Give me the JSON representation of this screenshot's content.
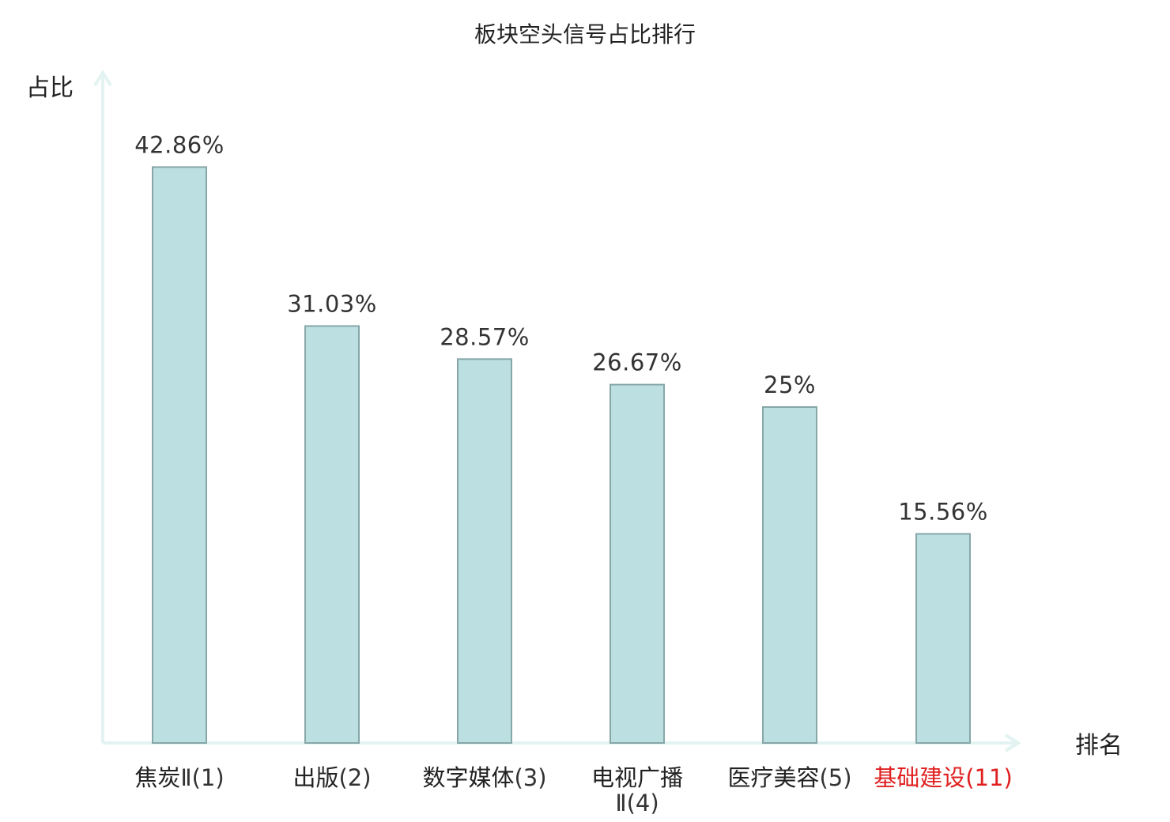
{
  "chart_data": {
    "type": "bar",
    "title": "板块空头信号占比排行",
    "ylabel": "占比",
    "xlabel": "排名",
    "categories": [
      {
        "name": "焦炭",
        "suffix": "Ⅱ(1)",
        "highlight": false
      },
      {
        "name": "出版",
        "suffix": "(2)",
        "highlight": false
      },
      {
        "name": "数字媒体",
        "suffix": "(3)",
        "highlight": false
      },
      {
        "name": "电视广播",
        "suffix": "Ⅱ(4)",
        "highlight": false
      },
      {
        "name": "医疗美容",
        "suffix": "(5)",
        "highlight": false
      },
      {
        "name": "基础建设",
        "suffix": "(11)",
        "highlight": true
      }
    ],
    "values": [
      42.86,
      31.03,
      28.57,
      26.67,
      25,
      15.56
    ],
    "value_labels": [
      "42.86%",
      "31.03%",
      "28.57%",
      "26.67%",
      "25%",
      "15.56%"
    ],
    "ylim": [
      0,
      50
    ],
    "grid": false,
    "colors": {
      "bar_fill": "#bce0e2",
      "bar_stroke": "#87a6a8",
      "axis": "#e2f3f1",
      "text": "#222222",
      "value_text": "#333333",
      "highlight": "#e02020"
    }
  }
}
